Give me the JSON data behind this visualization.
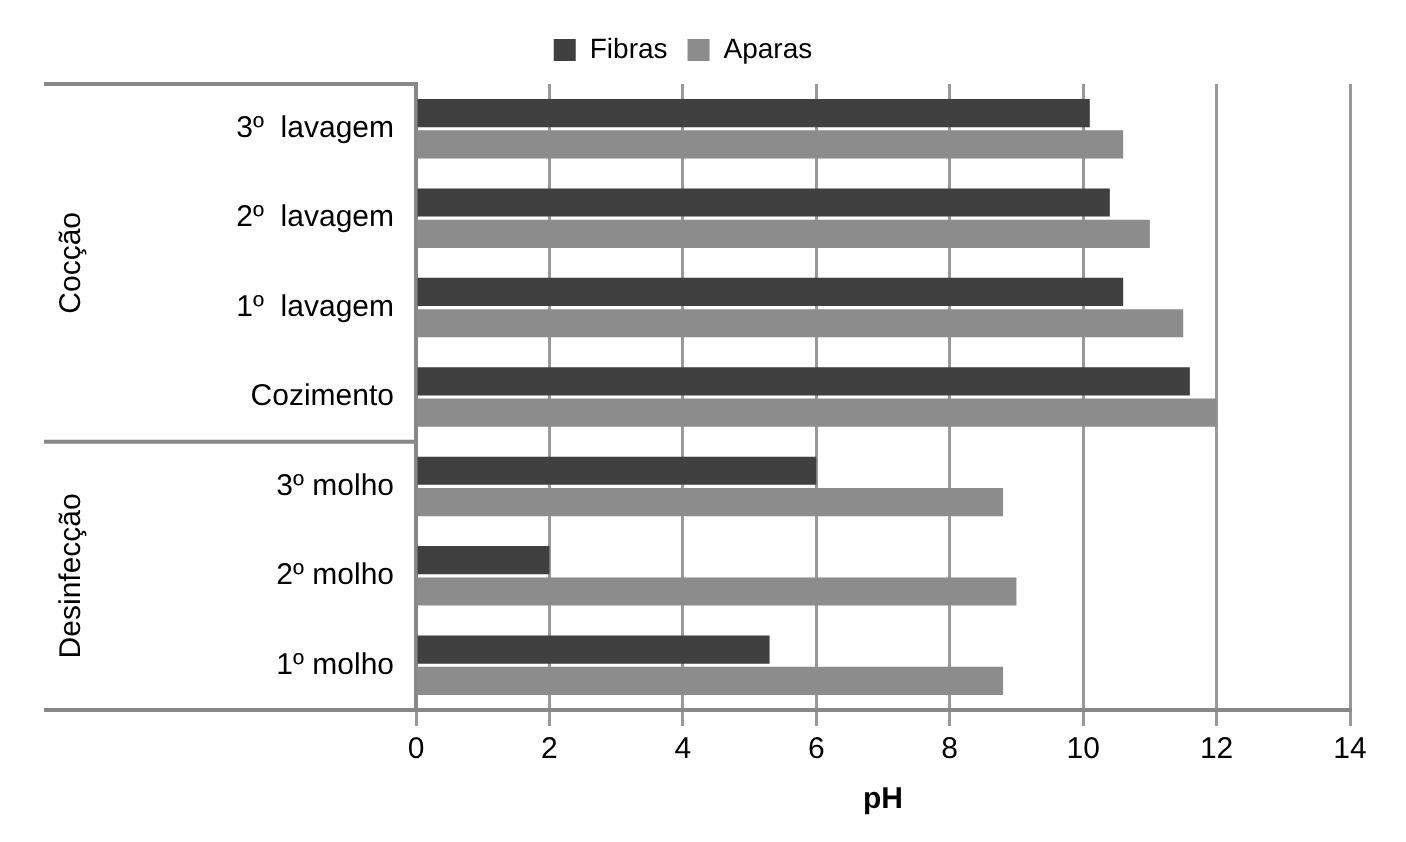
{
  "chart_data": {
    "type": "bar",
    "orientation": "horizontal",
    "xlabel": "pH",
    "categories": [
      "3º  lavagem",
      "2º  lavagem",
      "1º  lavagem",
      "Cozimento",
      "3º molho",
      "2º molho",
      "1º molho"
    ],
    "series": [
      {
        "name": "Fibras",
        "color": "#404040",
        "values": [
          10.1,
          10.4,
          10.6,
          11.6,
          6.0,
          2.0,
          5.3
        ]
      },
      {
        "name": "Aparas",
        "color": "#8c8c8c",
        "values": [
          10.6,
          11.0,
          11.5,
          12.0,
          8.8,
          9.0,
          8.8
        ]
      }
    ],
    "xlim": [
      0,
      14
    ],
    "xticks": [
      0,
      2,
      4,
      6,
      8,
      10,
      12,
      14
    ],
    "grid": "x",
    "legend": "top",
    "annotations": [
      "Cocção",
      "Desinfecção"
    ]
  }
}
